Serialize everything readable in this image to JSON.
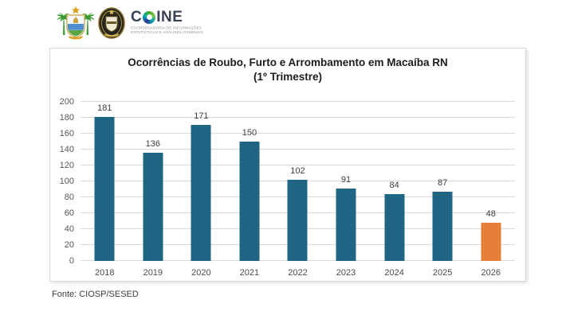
{
  "header": {
    "logos": [
      {
        "icon": "rn-coat-of-arms-icon"
      },
      {
        "icon": "police-emblem-icon"
      }
    ],
    "coine": {
      "prefix": "C",
      "o_icon": "coine-o-icon",
      "suffix": "INE",
      "subtitle_line1": "COORDENADORIA DE INFORMAÇÕES",
      "subtitle_line2": "ESTATÍSTICAS E ANÁLISES CRIMINAIS",
      "brand_colors": {
        "dark": "#3a4255",
        "green": "#3dae2b",
        "teal": "#00a7b5",
        "blue": "#2e3192"
      }
    }
  },
  "chart_data": {
    "type": "bar",
    "title": "Ocorrências de Roubo, Furto e Arrombamento em Macaíba RN",
    "subtitle": "(1º Trimestre)",
    "categories": [
      "2018",
      "2019",
      "2020",
      "2021",
      "2022",
      "2023",
      "2024",
      "2025",
      "2026"
    ],
    "values": [
      181,
      136,
      171,
      150,
      102,
      91,
      84,
      87,
      48
    ],
    "bar_colors": [
      "#1f6684",
      "#1f6684",
      "#1f6684",
      "#1f6684",
      "#1f6684",
      "#1f6684",
      "#1f6684",
      "#1f6684",
      "#e57e38"
    ],
    "xlabel": "",
    "ylabel": "",
    "ylim": [
      0,
      200
    ],
    "ytick_step": 20,
    "grid": true,
    "legend": null,
    "data_labels": true
  },
  "footer": {
    "source": "Fonte: CIOSP/SESED"
  }
}
